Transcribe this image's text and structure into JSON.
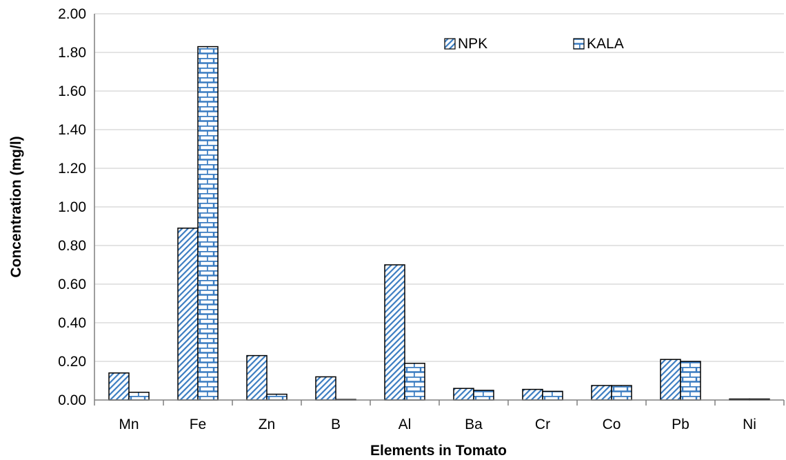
{
  "chart_data": {
    "type": "bar",
    "title": "",
    "xlabel": "Elements in Tomato",
    "ylabel": "Concentration (mg/l)",
    "categories": [
      "Mn",
      "Fe",
      "Zn",
      "B",
      "Al",
      "Ba",
      "Cr",
      "Co",
      "Pb",
      "Ni"
    ],
    "series": [
      {
        "name": "NPK",
        "values": [
          0.14,
          0.89,
          0.23,
          0.12,
          0.7,
          0.06,
          0.055,
          0.075,
          0.21,
          0.005
        ],
        "pattern": "diagonal"
      },
      {
        "name": "KALA",
        "values": [
          0.04,
          1.83,
          0.03,
          0.002,
          0.19,
          0.05,
          0.045,
          0.075,
          0.2,
          0.005
        ],
        "pattern": "brick"
      }
    ],
    "ylim": [
      0,
      2.0
    ],
    "yticks": [
      "0.00",
      "0.20",
      "0.40",
      "0.60",
      "0.80",
      "1.00",
      "1.20",
      "1.40",
      "1.60",
      "1.80",
      "2.00"
    ],
    "grid": true,
    "legend_position": "top-right",
    "colors": {
      "bar_stroke": "#000000",
      "pattern": "#3a7cc1",
      "grid": "#c8c8c8",
      "axis": "#7f7f7f"
    }
  }
}
